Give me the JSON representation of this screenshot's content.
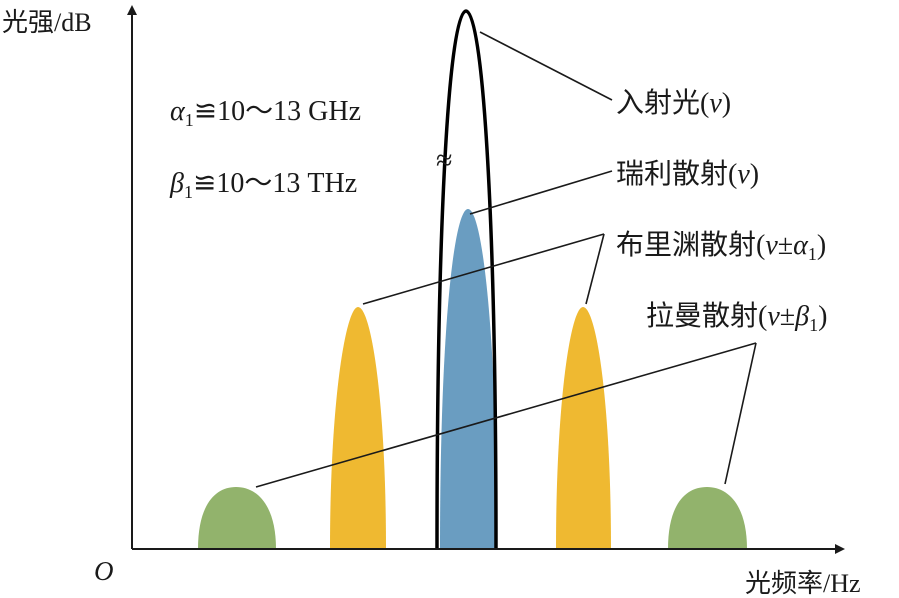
{
  "axes": {
    "y_label": "光强/dB",
    "x_label": "光频率/Hz",
    "origin": "O"
  },
  "params": {
    "alpha_sym": "α",
    "alpha_sub": "1",
    "alpha_rel": "≌10～13 GHz",
    "beta_sym": "β",
    "beta_sub": "1",
    "beta_rel": "≌10～13 THz"
  },
  "break_mark": "≈",
  "labels": {
    "incident": {
      "text": "入射光(",
      "var": "v",
      "close": ")"
    },
    "rayleigh": {
      "text": "瑞利散射(",
      "var": "v",
      "close": ")"
    },
    "brillouin": {
      "text": "布里渊散射(",
      "var": "v",
      "pm": "±",
      "sym": "α",
      "sub": "1",
      "close": ")"
    },
    "raman": {
      "text": "拉曼散射(",
      "var": "v",
      "pm": "±",
      "sym": "β",
      "sub": "1",
      "close": ")"
    }
  },
  "colors": {
    "raman": "#92b36c",
    "brillouin": "#efb931",
    "rayleigh": "#6a9dc1",
    "incident": "#000000",
    "axis": "#1a1a1a"
  }
}
